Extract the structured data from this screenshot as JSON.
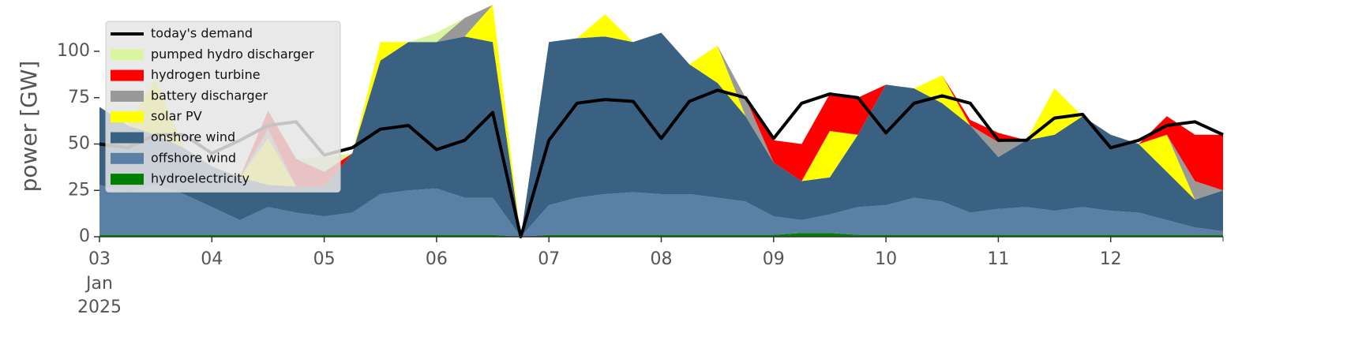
{
  "chart_data": {
    "type": "stacked-area",
    "ylabel": "power [GW]",
    "x": [
      3,
      3.25,
      3.5,
      3.75,
      4,
      4.25,
      4.5,
      4.75,
      5,
      5.25,
      5.5,
      5.75,
      6,
      6.25,
      6.5,
      6.75,
      7,
      7.25,
      7.5,
      7.75,
      8,
      8.25,
      8.5,
      8.75,
      9,
      9.25,
      9.5,
      9.75,
      10,
      10.25,
      10.5,
      10.75,
      11,
      11.25,
      11.5,
      11.75,
      12,
      12.25,
      12.5,
      12.75,
      13
    ],
    "xlim": [
      3,
      13
    ],
    "xticks": [
      {
        "value": 3,
        "label": "03"
      },
      {
        "value": 4,
        "label": "04"
      },
      {
        "value": 5,
        "label": "05"
      },
      {
        "value": 6,
        "label": "06"
      },
      {
        "value": 7,
        "label": "07"
      },
      {
        "value": 8,
        "label": "08"
      },
      {
        "value": 9,
        "label": "09"
      },
      {
        "value": 10,
        "label": "10"
      },
      {
        "value": 11,
        "label": "11"
      },
      {
        "value": 12,
        "label": "12"
      }
    ],
    "xtick_sublabels": [
      "Jan",
      "2025"
    ],
    "ylim": [
      0,
      120
    ],
    "yticks": [
      0,
      25,
      50,
      75,
      100
    ],
    "legend": "upper left",
    "series": [
      {
        "name": "hydroelectricity",
        "color": "#008000",
        "values": [
          1,
          1,
          1,
          1,
          1,
          1,
          1,
          1,
          1,
          1,
          1,
          1,
          1,
          1,
          1,
          0,
          1,
          1,
          1,
          1,
          1,
          1,
          1,
          1,
          1,
          2,
          2,
          1,
          1,
          1,
          1,
          1,
          1,
          1,
          1,
          1,
          1,
          1,
          1,
          1,
          1
        ]
      },
      {
        "name": "offshore wind",
        "color": "#5b80a5",
        "values": [
          27,
          23,
          27,
          22,
          15,
          8,
          15,
          12,
          10,
          12,
          22,
          24,
          25,
          20,
          20,
          0,
          16,
          20,
          22,
          23,
          22,
          22,
          20,
          18,
          10,
          7,
          10,
          15,
          16,
          20,
          18,
          12,
          14,
          15,
          13,
          15,
          13,
          12,
          8,
          4,
          2
        ]
      },
      {
        "name": "onshore wind",
        "color": "#3b6182",
        "values": [
          42,
          36,
          27,
          25,
          22,
          23,
          12,
          14,
          16,
          32,
          72,
          80,
          79,
          87,
          84,
          0,
          88,
          86,
          85,
          81,
          87,
          70,
          62,
          46,
          29,
          21,
          20,
          39,
          65,
          59,
          53,
          47,
          28,
          36,
          41,
          49,
          41,
          37,
          26,
          15,
          22
        ]
      },
      {
        "name": "solar PV",
        "color": "#ffff00",
        "values": [
          0,
          0,
          30,
          0,
          0,
          0,
          25,
          0,
          0,
          0,
          10,
          0,
          0,
          0,
          20,
          0,
          0,
          0,
          12,
          0,
          0,
          0,
          20,
          0,
          0,
          0,
          25,
          0,
          0,
          0,
          15,
          0,
          0,
          0,
          25,
          0,
          0,
          0,
          20,
          0,
          0
        ]
      },
      {
        "name": "battery discharger",
        "color": "#999999",
        "values": [
          0,
          0,
          0,
          0,
          0,
          0,
          5,
          0,
          0,
          0,
          0,
          0,
          0,
          10,
          0,
          0,
          0,
          0,
          0,
          0,
          0,
          0,
          0,
          10,
          0,
          0,
          0,
          0,
          0,
          0,
          0,
          0,
          8,
          0,
          0,
          0,
          0,
          0,
          0,
          10,
          0
        ]
      },
      {
        "name": "hydrogen turbine",
        "color": "#ff0000",
        "values": [
          0,
          0,
          0,
          0,
          0,
          0,
          10,
          15,
          8,
          0,
          0,
          0,
          0,
          0,
          0,
          0,
          0,
          0,
          0,
          0,
          0,
          0,
          0,
          0,
          12,
          20,
          20,
          20,
          0,
          0,
          0,
          3,
          5,
          0,
          0,
          0,
          0,
          0,
          10,
          25,
          30
        ]
      },
      {
        "name": "pumped hydro discharger",
        "color": "#d9f5a0",
        "values": [
          0,
          0,
          0,
          0,
          0,
          0,
          0,
          0,
          8,
          0,
          0,
          0,
          5,
          0,
          0,
          0,
          0,
          0,
          0,
          0,
          0,
          0,
          0,
          0,
          0,
          0,
          0,
          0,
          0,
          0,
          0,
          0,
          0,
          0,
          0,
          0,
          0,
          0,
          0,
          0,
          0
        ]
      }
    ],
    "line_series": {
      "name": "today's demand",
      "color": "#000000",
      "values": [
        50,
        48,
        55,
        55,
        45,
        52,
        60,
        62,
        44,
        48,
        58,
        60,
        47,
        52,
        67,
        0,
        52,
        72,
        74,
        73,
        53,
        73,
        79,
        75,
        53,
        72,
        77,
        75,
        56,
        72,
        76,
        72,
        52,
        52,
        64,
        66,
        48,
        52,
        60,
        62,
        55
      ]
    }
  }
}
